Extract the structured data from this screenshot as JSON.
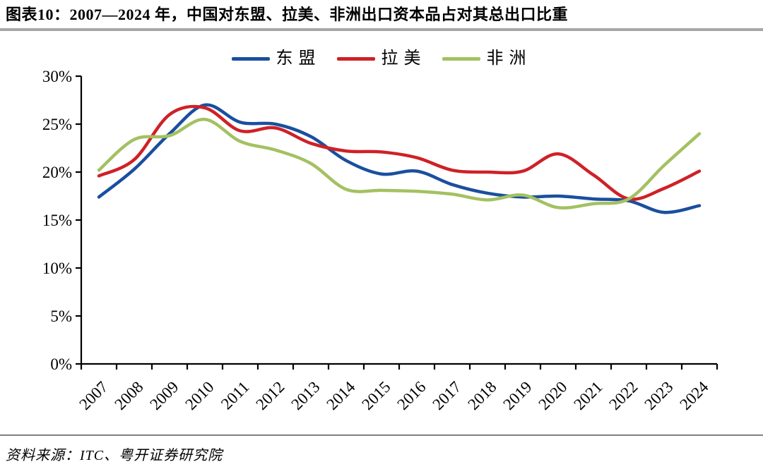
{
  "header": {
    "title": "图表10：2007—2024 年，中国对东盟、拉美、非洲出口资本品占对其总出口比重"
  },
  "source": {
    "text": "资料来源：ITC、粤开证券研究院"
  },
  "colors": {
    "axis": "#000000",
    "title_rule": "#a6a6a6",
    "footer_rule": "#7f7f7f",
    "text": "#000000"
  },
  "chart_data": {
    "type": "line",
    "title": "2007—2024 年，中国对东盟、拉美、非洲出口资本品占对其总出口比重",
    "categories": [
      "2007",
      "2008",
      "2009",
      "2010",
      "2011",
      "2012",
      "2013",
      "2014",
      "2015",
      "2016",
      "2017",
      "2018",
      "2019",
      "2020",
      "2021",
      "2022",
      "2023",
      "2024"
    ],
    "series": [
      {
        "key": "asean",
        "name": "东盟",
        "color": "#1a4f9e",
        "values": [
          17.4,
          20.3,
          24.0,
          27.0,
          25.2,
          25.0,
          23.7,
          21.2,
          19.8,
          20.1,
          18.7,
          17.8,
          17.4,
          17.5,
          17.2,
          17.0,
          15.8,
          16.5
        ]
      },
      {
        "key": "latam",
        "name": "拉美",
        "color": "#ce2127",
        "values": [
          19.6,
          21.3,
          26.0,
          26.7,
          24.3,
          24.6,
          23.0,
          22.2,
          22.1,
          21.5,
          20.2,
          20.0,
          20.1,
          21.9,
          19.7,
          17.2,
          18.3,
          20.1
        ]
      },
      {
        "key": "africa",
        "name": "非洲",
        "color": "#a3c161",
        "values": [
          20.2,
          23.4,
          23.8,
          25.5,
          23.2,
          22.3,
          20.9,
          18.2,
          18.1,
          18.0,
          17.7,
          17.1,
          17.6,
          16.3,
          16.7,
          17.2,
          20.7,
          24.0
        ]
      }
    ],
    "ylim": [
      0,
      30
    ],
    "ytick_step": 5,
    "ytick_suffix": "%",
    "xlabel": "",
    "ylabel": "",
    "grid": false,
    "smooth": true,
    "legend_position": "top"
  }
}
